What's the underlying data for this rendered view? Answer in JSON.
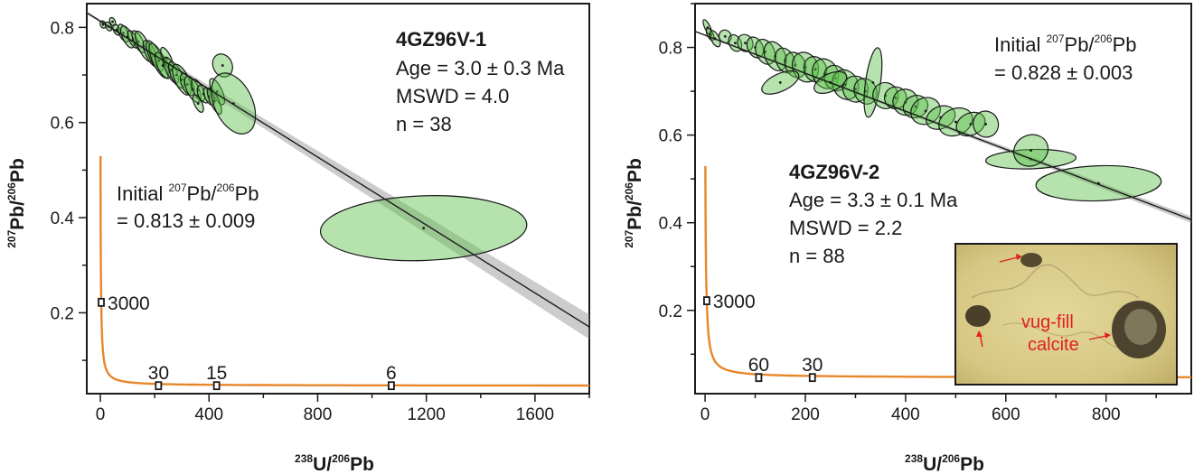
{
  "chart_data": [
    {
      "type": "scatter",
      "sample": "4GZ96V-1",
      "xlabel": {
        "pre": "238",
        "a": "U/",
        "sup": "206",
        "b": "Pb"
      },
      "ylabel": {
        "pre": "207",
        "a": "Pb/",
        "sup": "206",
        "b": "Pb"
      },
      "xlim": [
        -50,
        1800
      ],
      "ylim": [
        0.03,
        0.85
      ],
      "xticks": [
        0,
        400,
        800,
        1200,
        1600
      ],
      "xtick_labels": [
        "0",
        "400",
        "800",
        "1200",
        "1600"
      ],
      "yticks": [
        0.2,
        0.4,
        0.6,
        0.8
      ],
      "ytick_labels": [
        "0.2",
        "0.4",
        "0.6",
        "0.8"
      ],
      "stats": {
        "title": "4GZ96V-1",
        "age": "Age = 3.0 ± 0.3 Ma",
        "mswd": "MSWD = 4.0",
        "n": "n = 38"
      },
      "initial": {
        "line1a": "Initial ",
        "sup1": "207",
        "line1b": "Pb/",
        "sup2": "206",
        "line1c": "Pb",
        "line2": "= 0.813 ± 0.009"
      },
      "regression": {
        "intercept": 0.813,
        "slope": -0.000357
      },
      "concordia_ages": [
        {
          "label": "3000",
          "x": 3.3,
          "y": 0.222
        },
        {
          "label": "30",
          "x": 214,
          "y": 0.0467
        },
        {
          "label": "15",
          "x": 428,
          "y": 0.0467
        },
        {
          "label": "6",
          "x": 1071,
          "y": 0.0467
        }
      ],
      "ellipses": [
        {
          "x": 10,
          "y": 0.806,
          "rx": 8,
          "ry": 0.008
        },
        {
          "x": 30,
          "y": 0.802,
          "rx": 10,
          "ry": 0.01
        },
        {
          "x": 45,
          "y": 0.812,
          "rx": 10,
          "ry": 0.009
        },
        {
          "x": 60,
          "y": 0.795,
          "rx": 12,
          "ry": 0.012
        },
        {
          "x": 85,
          "y": 0.788,
          "rx": 16,
          "ry": 0.02
        },
        {
          "x": 100,
          "y": 0.78,
          "rx": 18,
          "ry": 0.025
        },
        {
          "x": 120,
          "y": 0.775,
          "rx": 14,
          "ry": 0.02
        },
        {
          "x": 140,
          "y": 0.77,
          "rx": 16,
          "ry": 0.025
        },
        {
          "x": 160,
          "y": 0.76,
          "rx": 20,
          "ry": 0.035
        },
        {
          "x": 185,
          "y": 0.745,
          "rx": 18,
          "ry": 0.03
        },
        {
          "x": 200,
          "y": 0.74,
          "rx": 20,
          "ry": 0.035
        },
        {
          "x": 215,
          "y": 0.73,
          "rx": 22,
          "ry": 0.04
        },
        {
          "x": 230,
          "y": 0.72,
          "rx": 20,
          "ry": 0.03
        },
        {
          "x": 245,
          "y": 0.735,
          "rx": 15,
          "ry": 0.025
        },
        {
          "x": 260,
          "y": 0.71,
          "rx": 18,
          "ry": 0.03
        },
        {
          "x": 280,
          "y": 0.7,
          "rx": 20,
          "ry": 0.03
        },
        {
          "x": 300,
          "y": 0.69,
          "rx": 25,
          "ry": 0.035
        },
        {
          "x": 320,
          "y": 0.68,
          "rx": 20,
          "ry": 0.025
        },
        {
          "x": 340,
          "y": 0.67,
          "rx": 22,
          "ry": 0.03
        },
        {
          "x": 360,
          "y": 0.668,
          "rx": 18,
          "ry": 0.025
        },
        {
          "x": 380,
          "y": 0.66,
          "rx": 20,
          "ry": 0.02
        },
        {
          "x": 400,
          "y": 0.655,
          "rx": 15,
          "ry": 0.02
        },
        {
          "x": 430,
          "y": 0.665,
          "rx": 18,
          "ry": 0.03
        },
        {
          "x": 360,
          "y": 0.64,
          "rx": 14,
          "ry": 0.02
        },
        {
          "x": 420,
          "y": 0.645,
          "rx": 16,
          "ry": 0.03
        },
        {
          "x": 450,
          "y": 0.72,
          "rx": 35,
          "ry": 0.025
        },
        {
          "x": 490,
          "y": 0.64,
          "rx": 70,
          "ry": 0.068
        },
        {
          "x": 1190,
          "y": 0.378,
          "rx": 380,
          "ry": 0.068
        }
      ]
    },
    {
      "type": "scatter",
      "sample": "4GZ96V-2",
      "xlabel": {
        "pre": "238",
        "a": "U/",
        "sup": "206",
        "b": "Pb"
      },
      "ylabel": {
        "pre": "207",
        "a": "Pb/",
        "sup": "206",
        "b": "Pb"
      },
      "xlim": [
        -20,
        970
      ],
      "ylim": [
        0.01,
        0.9
      ],
      "xticks": [
        0,
        200,
        400,
        600,
        800
      ],
      "xtick_labels": [
        "0",
        "200",
        "400",
        "600",
        "800"
      ],
      "yticks": [
        0.2,
        0.4,
        0.6,
        0.8
      ],
      "ytick_labels": [
        "0.2",
        "0.4",
        "0.6",
        "0.8"
      ],
      "stats": {
        "title": "4GZ96V-2",
        "age": "Age = 3.3 ± 0.1 Ma",
        "mswd": "MSWD = 2.2",
        "n": "n = 88"
      },
      "initial": {
        "line1a": "Initial ",
        "sup1": "207",
        "line1b": "Pb/",
        "sup2": "206",
        "line1c": "Pb",
        "line2": "= 0.828 ± 0.003"
      },
      "regression": {
        "intercept": 0.828,
        "slope": -0.000434
      },
      "concordia_ages": [
        {
          "label": "3000",
          "x": 3.3,
          "y": 0.222
        },
        {
          "label": "60",
          "x": 107,
          "y": 0.0467
        },
        {
          "label": "30",
          "x": 214,
          "y": 0.0467
        }
      ],
      "ellipses": [
        {
          "x": 5,
          "y": 0.845,
          "rx": 4,
          "ry": 0.02
        },
        {
          "x": 10,
          "y": 0.83,
          "rx": 6,
          "ry": 0.015
        },
        {
          "x": 20,
          "y": 0.82,
          "rx": 8,
          "ry": 0.02
        },
        {
          "x": 40,
          "y": 0.825,
          "rx": 12,
          "ry": 0.015
        },
        {
          "x": 60,
          "y": 0.81,
          "rx": 12,
          "ry": 0.02
        },
        {
          "x": 80,
          "y": 0.81,
          "rx": 15,
          "ry": 0.02
        },
        {
          "x": 100,
          "y": 0.8,
          "rx": 15,
          "ry": 0.025
        },
        {
          "x": 120,
          "y": 0.79,
          "rx": 18,
          "ry": 0.03
        },
        {
          "x": 140,
          "y": 0.78,
          "rx": 20,
          "ry": 0.035
        },
        {
          "x": 160,
          "y": 0.77,
          "rx": 18,
          "ry": 0.03
        },
        {
          "x": 180,
          "y": 0.76,
          "rx": 20,
          "ry": 0.03
        },
        {
          "x": 200,
          "y": 0.755,
          "rx": 25,
          "ry": 0.035
        },
        {
          "x": 220,
          "y": 0.75,
          "rx": 22,
          "ry": 0.03
        },
        {
          "x": 240,
          "y": 0.74,
          "rx": 25,
          "ry": 0.035
        },
        {
          "x": 260,
          "y": 0.73,
          "rx": 22,
          "ry": 0.03
        },
        {
          "x": 280,
          "y": 0.715,
          "rx": 25,
          "ry": 0.035
        },
        {
          "x": 300,
          "y": 0.705,
          "rx": 25,
          "ry": 0.03
        },
        {
          "x": 320,
          "y": 0.7,
          "rx": 22,
          "ry": 0.03
        },
        {
          "x": 335,
          "y": 0.72,
          "rx": 15,
          "ry": 0.08
        },
        {
          "x": 360,
          "y": 0.69,
          "rx": 25,
          "ry": 0.03
        },
        {
          "x": 380,
          "y": 0.685,
          "rx": 22,
          "ry": 0.025
        },
        {
          "x": 400,
          "y": 0.675,
          "rx": 25,
          "ry": 0.03
        },
        {
          "x": 420,
          "y": 0.665,
          "rx": 25,
          "ry": 0.025
        },
        {
          "x": 440,
          "y": 0.655,
          "rx": 30,
          "ry": 0.03
        },
        {
          "x": 470,
          "y": 0.64,
          "rx": 30,
          "ry": 0.025
        },
        {
          "x": 500,
          "y": 0.63,
          "rx": 35,
          "ry": 0.03
        },
        {
          "x": 530,
          "y": 0.625,
          "rx": 30,
          "ry": 0.025
        },
        {
          "x": 560,
          "y": 0.625,
          "rx": 25,
          "ry": 0.03
        },
        {
          "x": 150,
          "y": 0.72,
          "rx": 40,
          "ry": 0.02
        },
        {
          "x": 250,
          "y": 0.72,
          "rx": 35,
          "ry": 0.02
        },
        {
          "x": 650,
          "y": 0.545,
          "rx": 90,
          "ry": 0.022
        },
        {
          "x": 650,
          "y": 0.565,
          "rx": 35,
          "ry": 0.035
        },
        {
          "x": 785,
          "y": 0.49,
          "rx": 125,
          "ry": 0.04
        }
      ],
      "inset_labels": {
        "line1": "vug-fill",
        "line2": "calcite"
      }
    }
  ]
}
